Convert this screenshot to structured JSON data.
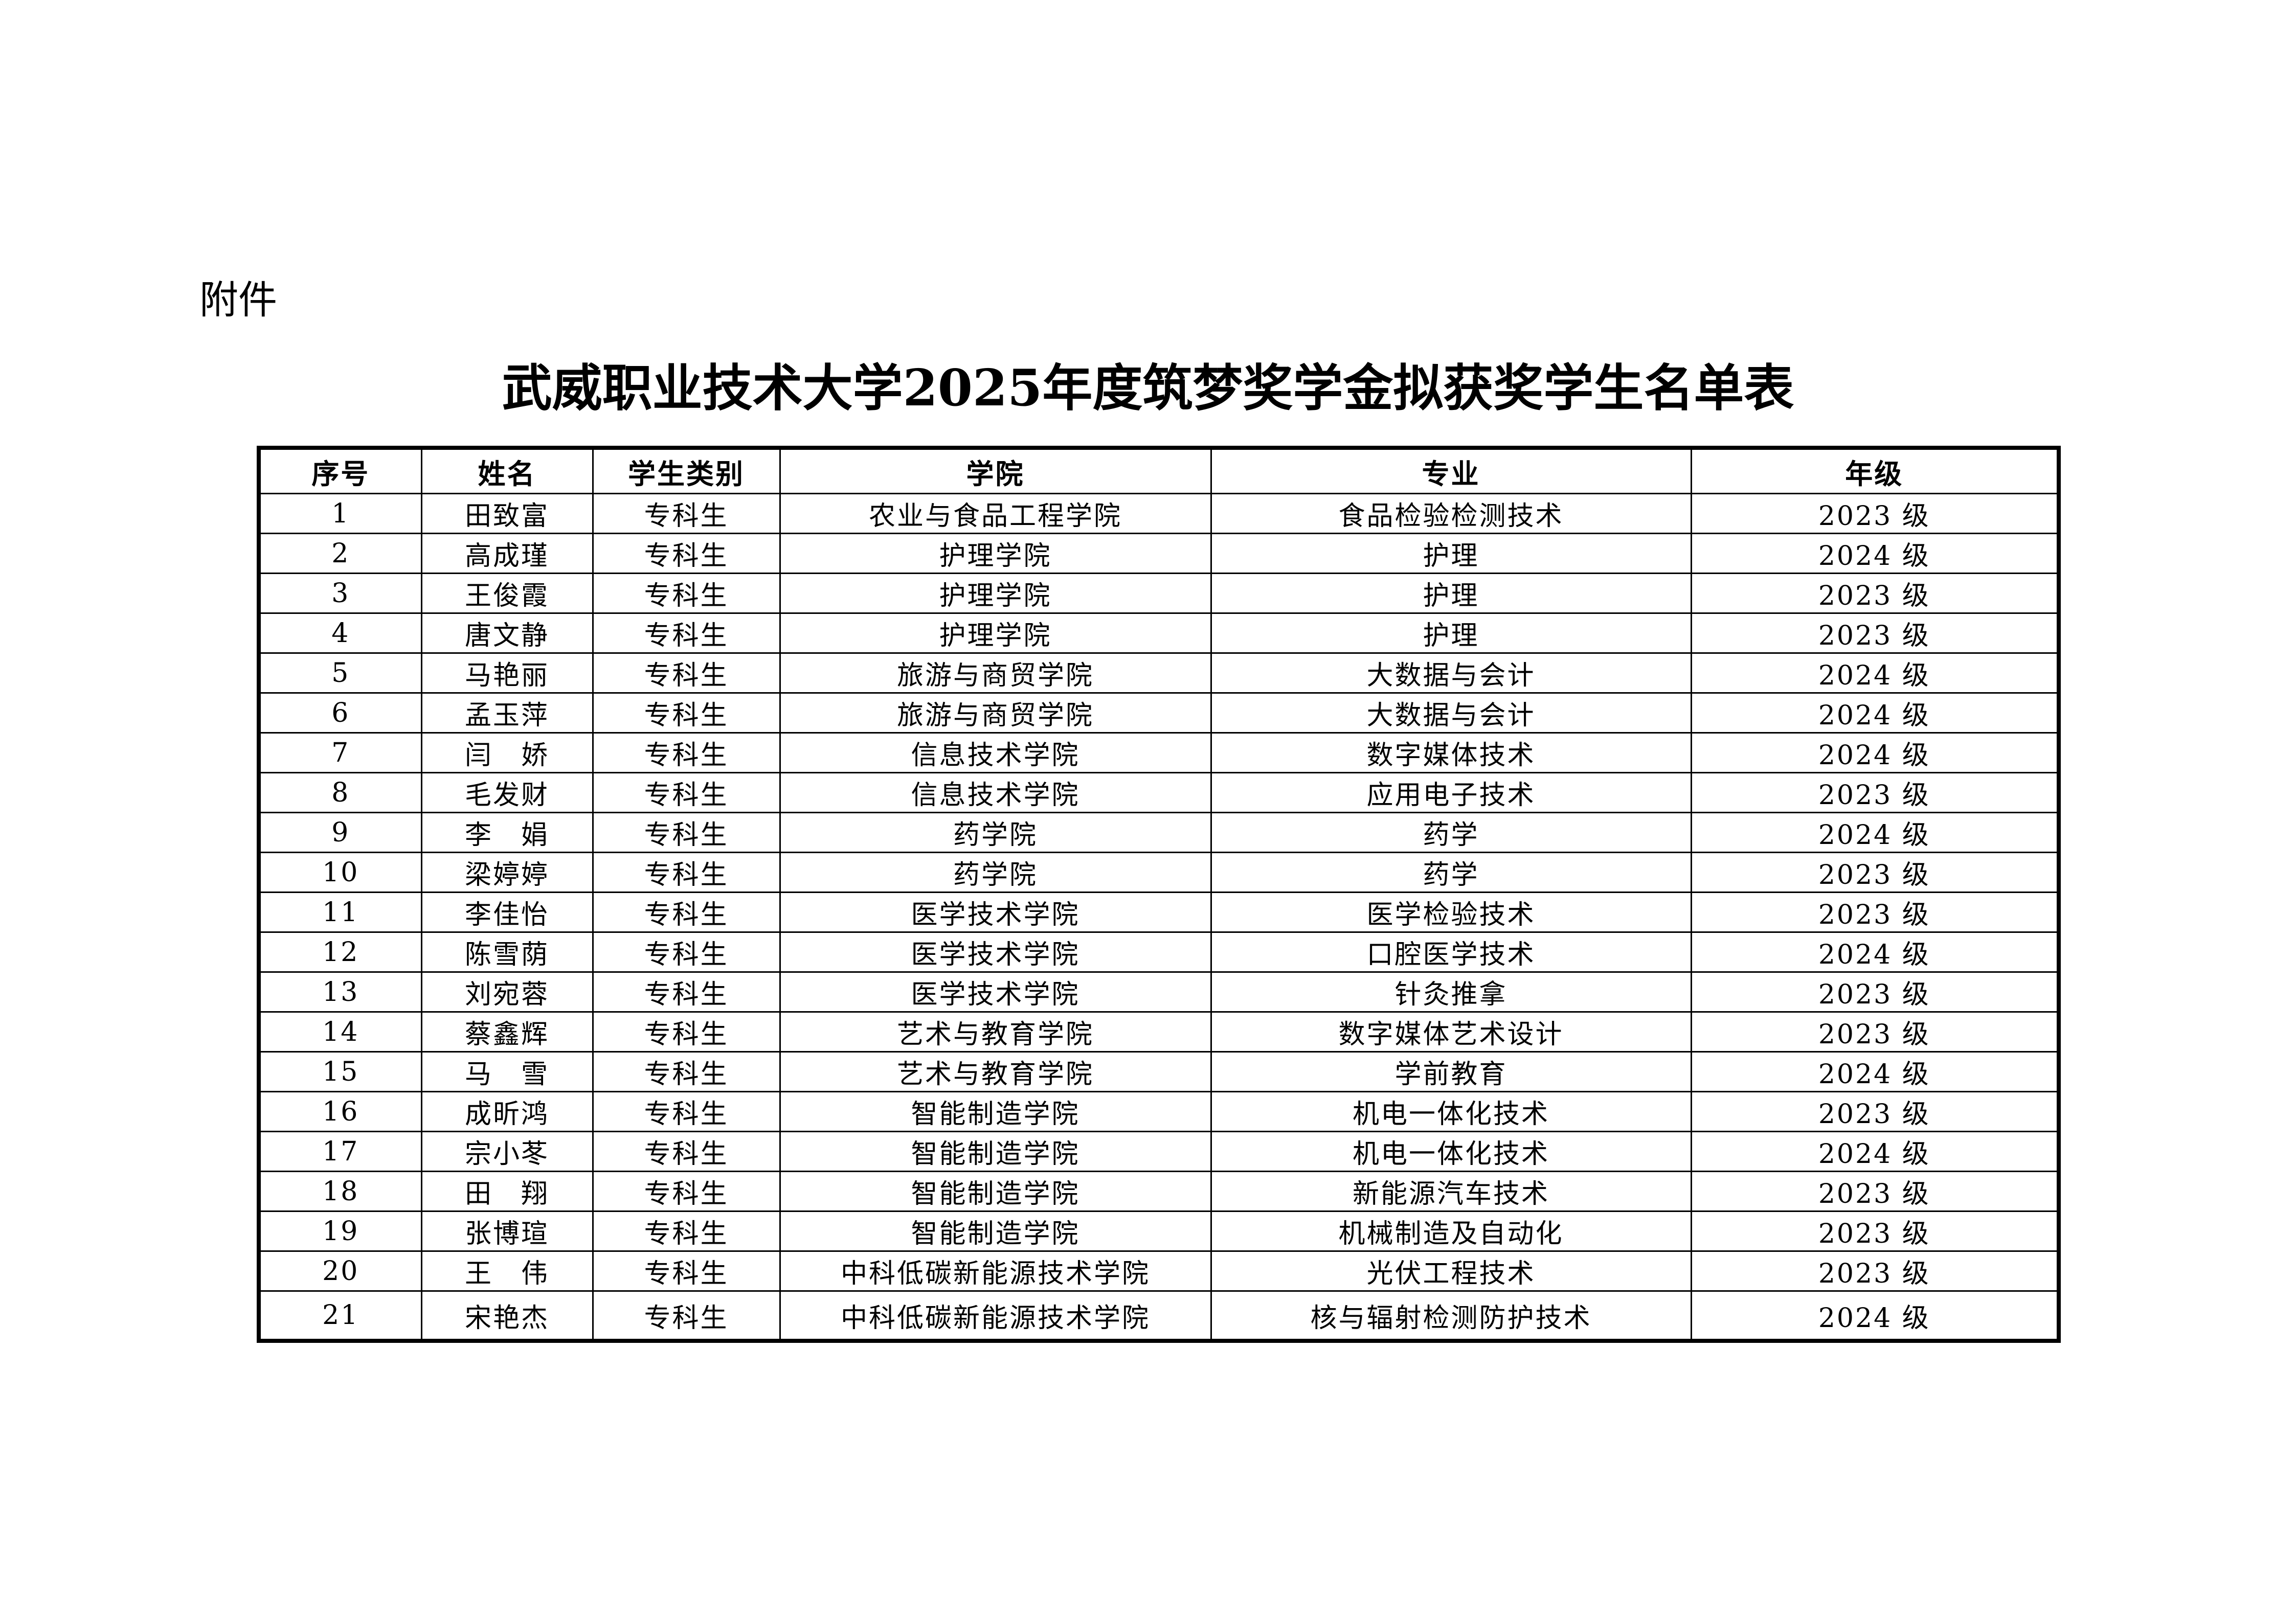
{
  "attachment_label": "附件",
  "title": "武威职业技术大学2025年度筑梦奖学金拟获奖学生名单表",
  "table": {
    "headers": [
      "序号",
      "姓名",
      "学生类别",
      "学院",
      "专业",
      "年级"
    ],
    "rows": [
      [
        "1",
        "田致富",
        "专科生",
        "农业与食品工程学院",
        "食品检验检测技术",
        "2023 级"
      ],
      [
        "2",
        "高成瑾",
        "专科生",
        "护理学院",
        "护理",
        "2024 级"
      ],
      [
        "3",
        "王俊霞",
        "专科生",
        "护理学院",
        "护理",
        "2023 级"
      ],
      [
        "4",
        "唐文静",
        "专科生",
        "护理学院",
        "护理",
        "2023 级"
      ],
      [
        "5",
        "马艳丽",
        "专科生",
        "旅游与商贸学院",
        "大数据与会计",
        "2024 级"
      ],
      [
        "6",
        "孟玉萍",
        "专科生",
        "旅游与商贸学院",
        "大数据与会计",
        "2024 级"
      ],
      [
        "7",
        "闫　娇",
        "专科生",
        "信息技术学院",
        "数字媒体技术",
        "2024 级"
      ],
      [
        "8",
        "毛发财",
        "专科生",
        "信息技术学院",
        "应用电子技术",
        "2023 级"
      ],
      [
        "9",
        "李　娟",
        "专科生",
        "药学院",
        "药学",
        "2024 级"
      ],
      [
        "10",
        "梁婷婷",
        "专科生",
        "药学院",
        "药学",
        "2023 级"
      ],
      [
        "11",
        "李佳怡",
        "专科生",
        "医学技术学院",
        "医学检验技术",
        "2023 级"
      ],
      [
        "12",
        "陈雪荫",
        "专科生",
        "医学技术学院",
        "口腔医学技术",
        "2024 级"
      ],
      [
        "13",
        "刘宛蓉",
        "专科生",
        "医学技术学院",
        "针灸推拿",
        "2023 级"
      ],
      [
        "14",
        "蔡鑫辉",
        "专科生",
        "艺术与教育学院",
        "数字媒体艺术设计",
        "2023 级"
      ],
      [
        "15",
        "马　雪",
        "专科生",
        "艺术与教育学院",
        "学前教育",
        "2024 级"
      ],
      [
        "16",
        "成昕鸿",
        "专科生",
        "智能制造学院",
        "机电一体化技术",
        "2023 级"
      ],
      [
        "17",
        "宗小苳",
        "专科生",
        "智能制造学院",
        "机电一体化技术",
        "2024 级"
      ],
      [
        "18",
        "田　翔",
        "专科生",
        "智能制造学院",
        "新能源汽车技术",
        "2023 级"
      ],
      [
        "19",
        "张博瑄",
        "专科生",
        "智能制造学院",
        "机械制造及自动化",
        "2023 级"
      ],
      [
        "20",
        "王　伟",
        "专科生",
        "中科低碳新能源技术学院",
        "光伏工程技术",
        "2023 级"
      ],
      [
        "21",
        "宋艳杰",
        "专科生",
        "中科低碳新能源技术学院",
        "核与辐射检测防护技术",
        "2024 级"
      ]
    ]
  }
}
